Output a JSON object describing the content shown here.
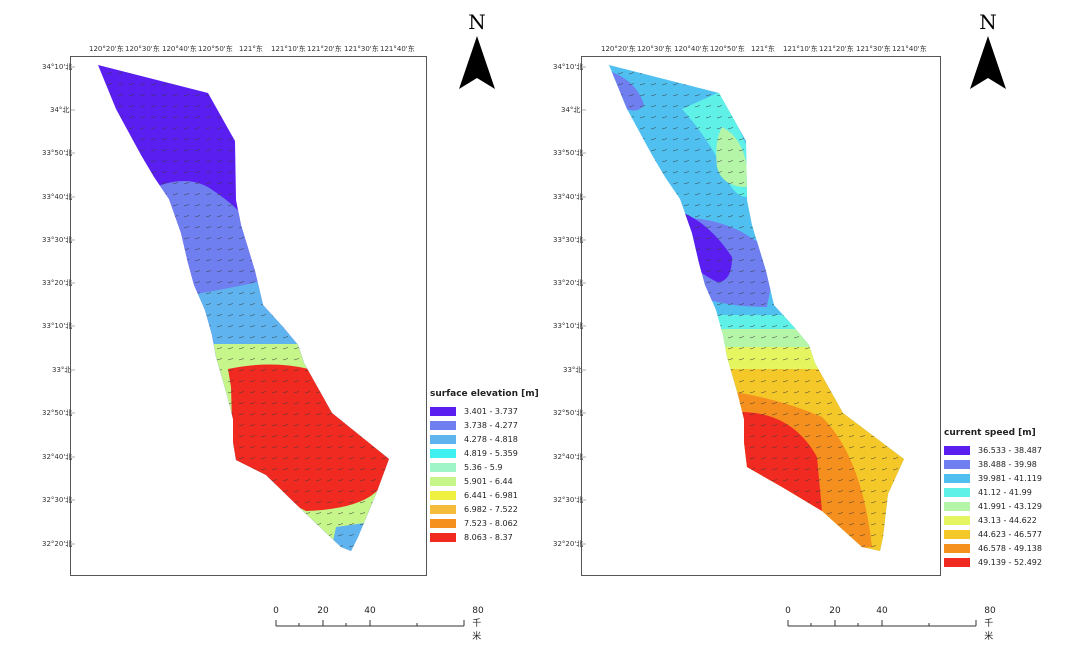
{
  "left_map": {
    "lon_ticks": [
      "120°20'东",
      "120°30'东",
      "120°40'东",
      "120°50'东",
      "121°东",
      "121°10'东",
      "121°20'东",
      "121°30'东",
      "121°40'东"
    ],
    "lat_ticks": [
      "34°10'北",
      "34°北",
      "33°50'北",
      "33°40'北",
      "33°30'北",
      "33°20'北",
      "33°10'北",
      "33°北",
      "32°50'北",
      "32°40'北",
      "32°30'北",
      "32°20'北"
    ],
    "legend": {
      "title": "surface elevation [m]",
      "items": [
        {
          "label": "3.401 - 3.737",
          "color": "#5a1ef0"
        },
        {
          "label": "3.738 - 4.277",
          "color": "#6f7ff0"
        },
        {
          "label": "4.278 - 4.818",
          "color": "#5fb4f0"
        },
        {
          "label": "4.819 - 5.359",
          "color": "#3ff0f0"
        },
        {
          "label": "5.36 - 5.9",
          "color": "#9ff5c8"
        },
        {
          "label": "5.901 - 6.44",
          "color": "#c6f58a"
        },
        {
          "label": "6.441 - 6.981",
          "color": "#f0f040"
        },
        {
          "label": "6.982 - 7.522",
          "color": "#f5bb3a"
        },
        {
          "label": "7.523 - 8.062",
          "color": "#f5901e"
        },
        {
          "label": "8.063 - 8.37",
          "color": "#f02a20"
        }
      ]
    },
    "north_label": "N",
    "scale": {
      "labels": [
        "0",
        "20",
        "40",
        "80 千米"
      ]
    }
  },
  "right_map": {
    "lon_ticks": [
      "120°20'东",
      "120°30'东",
      "120°40'东",
      "120°50'东",
      "121°东",
      "121°10'东",
      "121°20'东",
      "121°30'东",
      "121°40'东"
    ],
    "lat_ticks": [
      "34°10'北",
      "34°北",
      "33°50'北",
      "33°40'北",
      "33°30'北",
      "33°20'北",
      "33°10'北",
      "33°北",
      "32°50'北",
      "32°40'北",
      "32°30'北",
      "32°20'北"
    ],
    "legend": {
      "title": "current speed [m]",
      "items": [
        {
          "label": "36.533 - 38.487",
          "color": "#5a1ef0"
        },
        {
          "label": "38.488 - 39.98",
          "color": "#6f7ff0"
        },
        {
          "label": "39.981 - 41.119",
          "color": "#4fc0f0"
        },
        {
          "label": "41.12 - 41.99",
          "color": "#5ff0e8"
        },
        {
          "label": "41.991 - 43.129",
          "color": "#b4f5a8"
        },
        {
          "label": "43.13 - 44.622",
          "color": "#e4f560"
        },
        {
          "label": "44.623 - 46.577",
          "color": "#f5c82a"
        },
        {
          "label": "46.578 - 49.138",
          "color": "#f5901e"
        },
        {
          "label": "49.139 - 52.492",
          "color": "#f02a20"
        }
      ]
    },
    "north_label": "N",
    "scale": {
      "labels": [
        "0",
        "20",
        "40",
        "80 千米"
      ]
    }
  }
}
